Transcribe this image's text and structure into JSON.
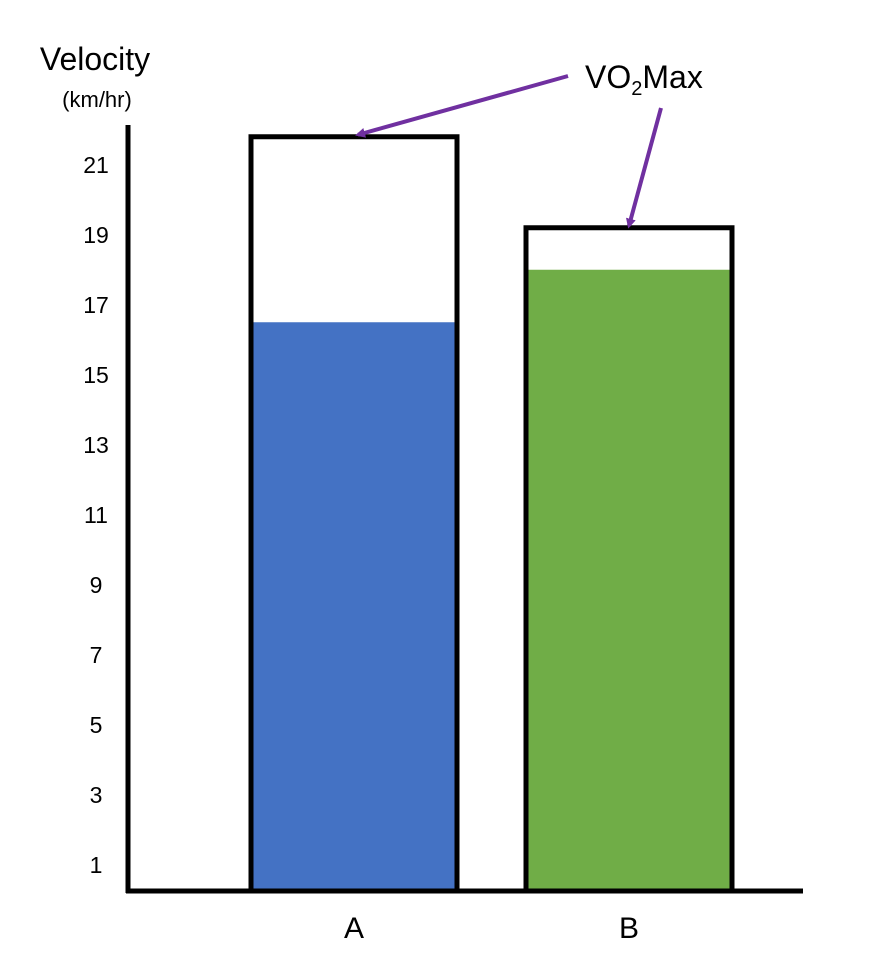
{
  "chart_data": {
    "type": "bar",
    "ylabel": "Velocity",
    "ylabel_unit": "(km/hr)",
    "categories": [
      "A",
      "B"
    ],
    "yticks": [
      "1",
      "3",
      "5",
      "7",
      "9",
      "11",
      "13",
      "15",
      "17",
      "19",
      "21"
    ],
    "ylim": [
      0.25,
      22.25
    ],
    "fill_values": [
      16.5,
      18
    ],
    "vo2max_values": [
      21.8,
      19.2
    ],
    "annotation": {
      "prefix": "VO",
      "subscript": "2",
      "suffix": "Max"
    },
    "colors": {
      "A": "#4472C4",
      "B": "#70AD47",
      "arrow": "#7030A0"
    },
    "grid": false
  }
}
